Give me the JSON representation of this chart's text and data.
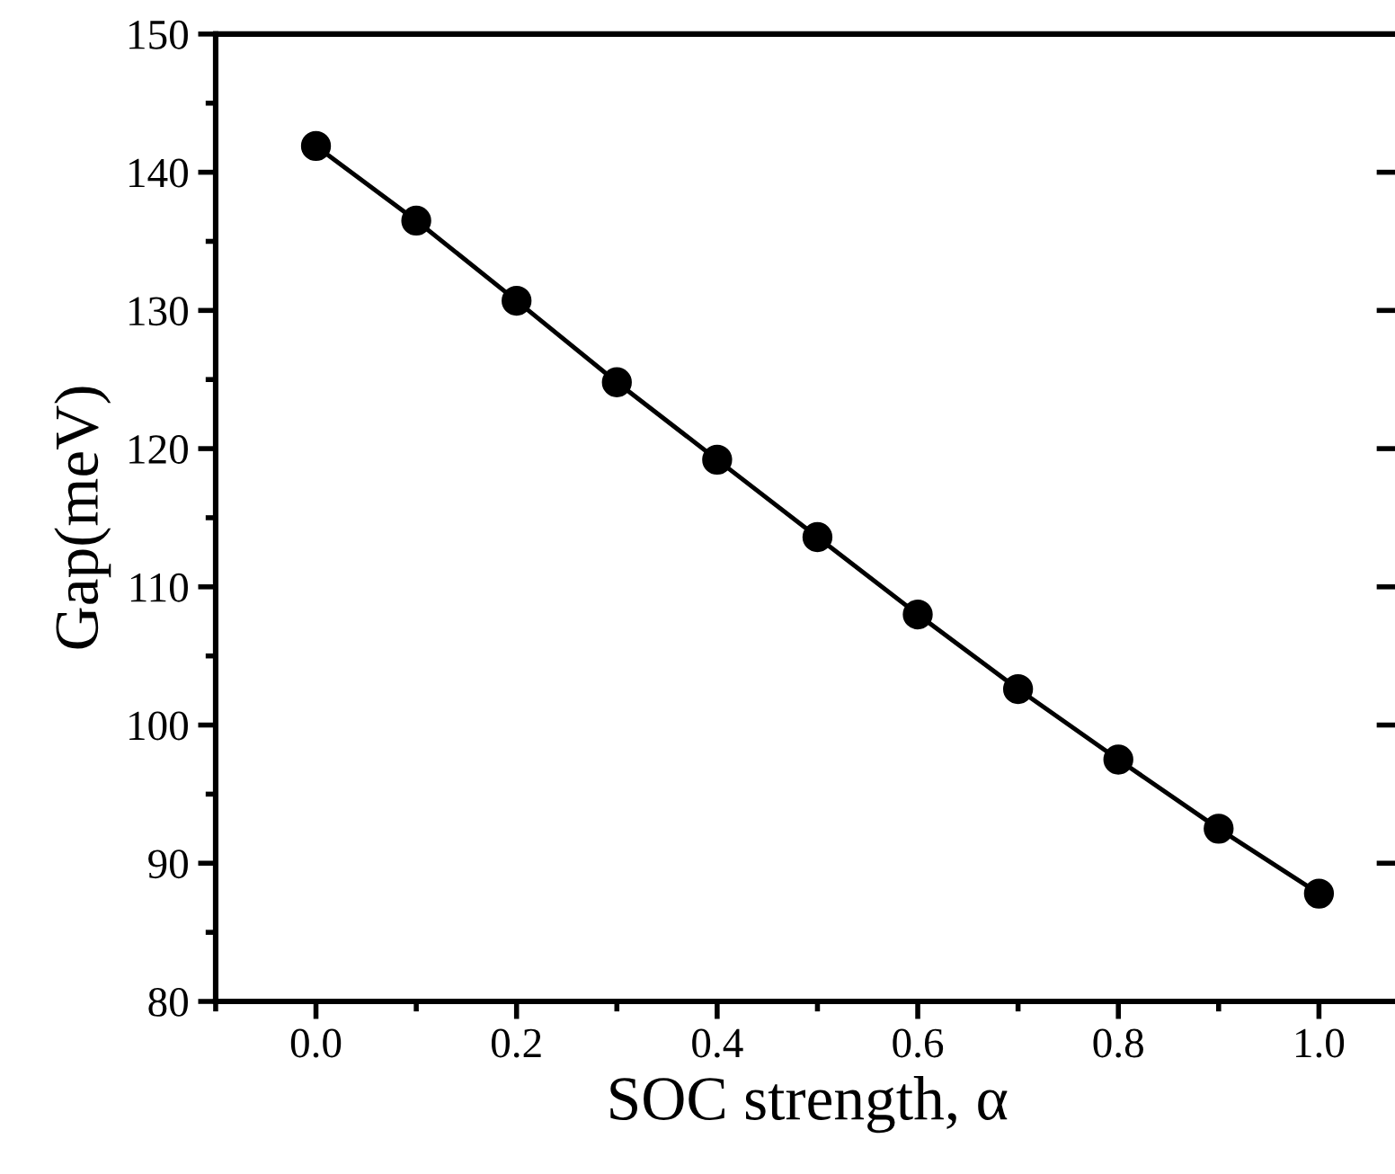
{
  "chart_data": {
    "type": "line",
    "xlabel": "SOC strength, α",
    "ylabel": "Gap(meV)",
    "x": [
      0.0,
      0.1,
      0.2,
      0.3,
      0.4,
      0.5,
      0.6,
      0.7,
      0.8,
      0.9,
      1.0
    ],
    "series": [
      {
        "color": "#000000",
        "values": [
          141.9,
          136.5,
          130.7,
          124.8,
          119.2,
          113.6,
          108.0,
          102.6,
          97.5,
          92.5,
          87.8
        ]
      }
    ],
    "marker": "circle",
    "line_style": "solid",
    "xlim": [
      -0.1,
      1.08
    ],
    "ylim": [
      80,
      150
    ],
    "xticks": [
      {
        "value": 0,
        "label": "0.0"
      },
      0.2,
      0.4,
      0.6,
      0.8,
      {
        "value": 1,
        "label": "1.0"
      }
    ],
    "yticks": [
      80,
      90,
      100,
      110,
      120,
      130,
      140,
      150
    ]
  }
}
